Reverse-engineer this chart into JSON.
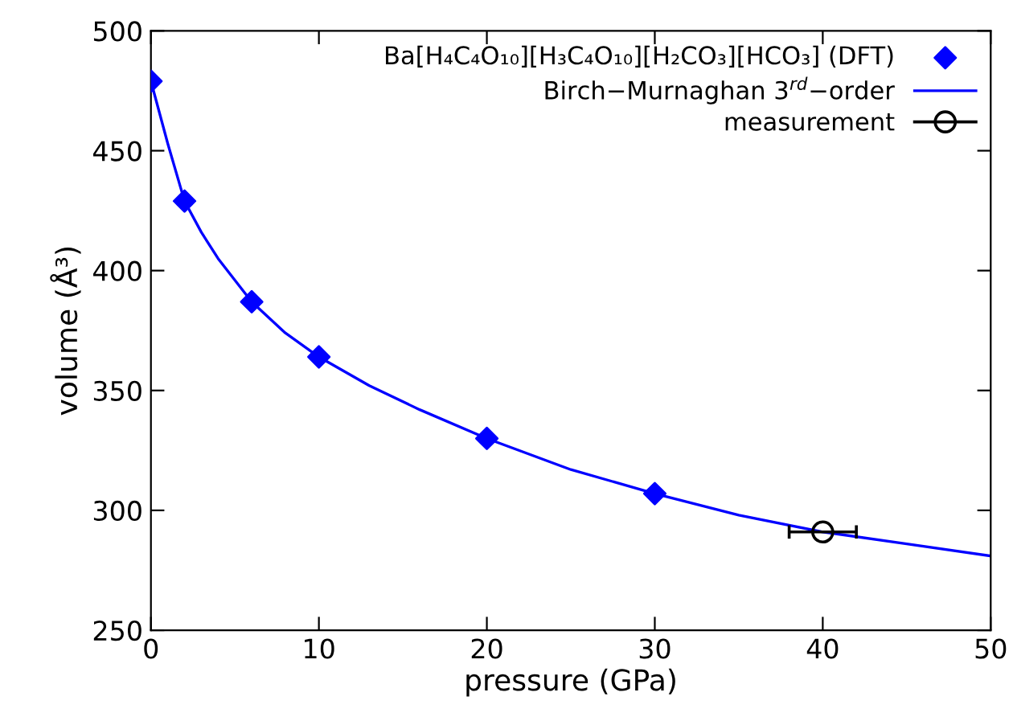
{
  "chart_data": {
    "type": "scatter",
    "xlabel": "pressure (GPa)",
    "ylabel": "volume (Å³)",
    "xlim": [
      0,
      50
    ],
    "ylim": [
      250,
      500
    ],
    "xticks": [
      0,
      10,
      20,
      30,
      40,
      50
    ],
    "yticks": [
      250,
      300,
      350,
      400,
      450,
      500
    ],
    "grid": false,
    "legend": "top right",
    "series": [
      {
        "name": "Ba[H₄C₄O₁₀][H₃C₄O₁₀][H₂CO₃][HCO₃] (DFT)",
        "color": "#0000ff",
        "marker": "diamond",
        "x": [
          0,
          2,
          6,
          10,
          20,
          30
        ],
        "values": [
          479,
          429,
          387,
          364,
          330,
          307
        ]
      },
      {
        "type": "line",
        "name": "Birch−Murnaghan 3$^{rd}$−order",
        "color": "#0000ff",
        "marker": "none",
        "line_style": "solid",
        "x": [
          0,
          1,
          2,
          3,
          4,
          6,
          8,
          10,
          13,
          16,
          20,
          25,
          30,
          35,
          40,
          45,
          50
        ],
        "values": [
          479,
          453,
          429,
          416,
          405,
          387,
          374,
          364,
          352,
          342,
          330,
          317,
          307,
          298,
          291,
          286,
          281
        ]
      },
      {
        "name": "measurement",
        "color": "#000000",
        "marker": "circle",
        "x": [
          40
        ],
        "values": [
          291
        ],
        "xerrors": [
          2
        ]
      }
    ]
  }
}
